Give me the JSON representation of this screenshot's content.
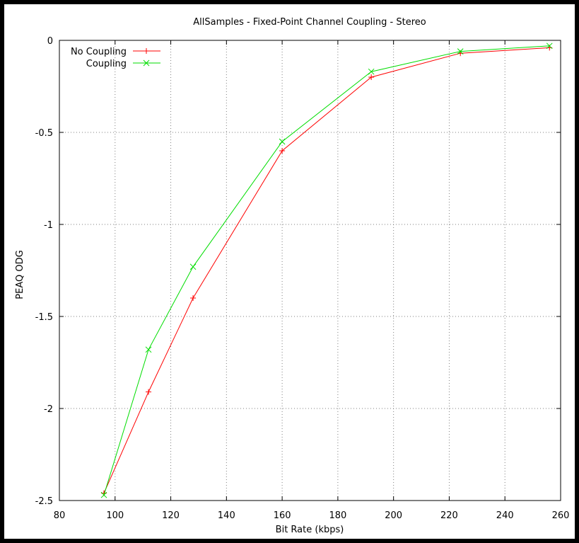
{
  "chart_data": {
    "type": "line",
    "title": "AllSamples - Fixed-Point Channel Coupling - Stereo",
    "xlabel": "Bit Rate (kbps)",
    "ylabel": "PEAQ ODG",
    "xlim": [
      80,
      260
    ],
    "ylim": [
      -2.5,
      0
    ],
    "xticks": [
      80,
      100,
      120,
      140,
      160,
      180,
      200,
      220,
      240,
      260
    ],
    "yticks": [
      0,
      -0.5,
      -1,
      -1.5,
      -2,
      -2.5
    ],
    "xtick_labels": [
      "80",
      "100",
      "120",
      "140",
      "160",
      "180",
      "200",
      "220",
      "240",
      "260"
    ],
    "ytick_labels": [
      "0",
      "-0.5",
      "-1",
      "-1.5",
      "-2",
      "-2.5"
    ],
    "grid": true,
    "legend_position": "top-left",
    "series": [
      {
        "name": "No Coupling",
        "color": "#ff0000",
        "marker": "plus",
        "x": [
          96,
          112,
          128,
          160,
          192,
          224,
          256
        ],
        "y": [
          -2.46,
          -1.91,
          -1.4,
          -0.6,
          -0.2,
          -0.07,
          -0.04
        ]
      },
      {
        "name": "Coupling",
        "color": "#00dd00",
        "marker": "cross",
        "x": [
          96,
          112,
          128,
          160,
          192,
          224,
          256
        ],
        "y": [
          -2.47,
          -1.68,
          -1.23,
          -0.55,
          -0.17,
          -0.06,
          -0.03
        ]
      }
    ]
  }
}
